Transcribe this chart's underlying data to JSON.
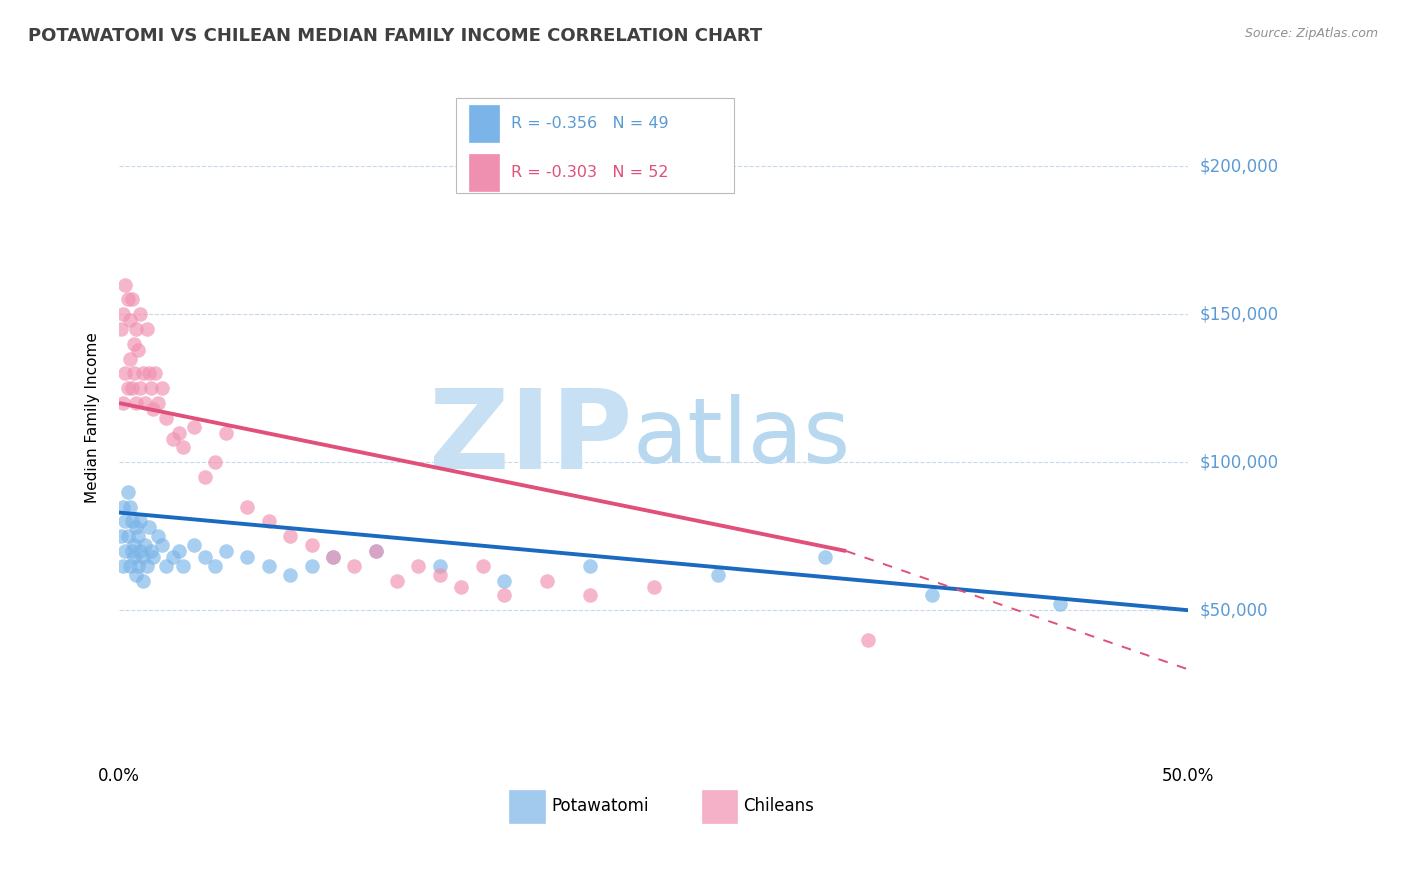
{
  "title": "POTAWATOMI VS CHILEAN MEDIAN FAMILY INCOME CORRELATION CHART",
  "source_text": "Source: ZipAtlas.com",
  "ylabel": "Median Family Income",
  "ytick_labels": [
    "$50,000",
    "$100,000",
    "$150,000",
    "$200,000"
  ],
  "ytick_values": [
    50000,
    100000,
    150000,
    200000
  ],
  "ylim": [
    0,
    230000
  ],
  "xlim": [
    0.0,
    0.5
  ],
  "potawatomi_x": [
    0.001,
    0.002,
    0.002,
    0.003,
    0.003,
    0.004,
    0.004,
    0.005,
    0.005,
    0.006,
    0.006,
    0.007,
    0.007,
    0.008,
    0.008,
    0.009,
    0.009,
    0.01,
    0.01,
    0.011,
    0.011,
    0.012,
    0.013,
    0.014,
    0.015,
    0.016,
    0.018,
    0.02,
    0.022,
    0.025,
    0.028,
    0.03,
    0.035,
    0.04,
    0.045,
    0.05,
    0.06,
    0.07,
    0.08,
    0.09,
    0.1,
    0.12,
    0.15,
    0.18,
    0.22,
    0.28,
    0.33,
    0.38,
    0.44
  ],
  "potawatomi_y": [
    75000,
    85000,
    65000,
    80000,
    70000,
    90000,
    75000,
    85000,
    65000,
    80000,
    70000,
    72000,
    68000,
    78000,
    62000,
    75000,
    65000,
    80000,
    70000,
    68000,
    60000,
    72000,
    65000,
    78000,
    70000,
    68000,
    75000,
    72000,
    65000,
    68000,
    70000,
    65000,
    72000,
    68000,
    65000,
    70000,
    68000,
    65000,
    62000,
    65000,
    68000,
    70000,
    65000,
    60000,
    65000,
    62000,
    68000,
    55000,
    52000
  ],
  "chilean_x": [
    0.001,
    0.002,
    0.002,
    0.003,
    0.003,
    0.004,
    0.004,
    0.005,
    0.005,
    0.006,
    0.006,
    0.007,
    0.007,
    0.008,
    0.008,
    0.009,
    0.01,
    0.01,
    0.011,
    0.012,
    0.013,
    0.014,
    0.015,
    0.016,
    0.017,
    0.018,
    0.02,
    0.022,
    0.025,
    0.028,
    0.03,
    0.035,
    0.04,
    0.045,
    0.05,
    0.06,
    0.07,
    0.08,
    0.09,
    0.1,
    0.11,
    0.12,
    0.13,
    0.14,
    0.15,
    0.16,
    0.17,
    0.18,
    0.2,
    0.22,
    0.25,
    0.35
  ],
  "chilean_y": [
    145000,
    150000,
    120000,
    160000,
    130000,
    155000,
    125000,
    148000,
    135000,
    155000,
    125000,
    140000,
    130000,
    145000,
    120000,
    138000,
    150000,
    125000,
    130000,
    120000,
    145000,
    130000,
    125000,
    118000,
    130000,
    120000,
    125000,
    115000,
    108000,
    110000,
    105000,
    112000,
    95000,
    100000,
    110000,
    85000,
    80000,
    75000,
    72000,
    68000,
    65000,
    70000,
    60000,
    65000,
    62000,
    58000,
    65000,
    55000,
    60000,
    55000,
    58000,
    40000
  ],
  "blue_dot_color": "#7ab4e8",
  "pink_dot_color": "#f090b0",
  "blue_line_color": "#1a6abf",
  "pink_line_color": "#e0507a",
  "tick_color": "#5b9bd5",
  "grid_color": "#c8daea",
  "background_color": "#ffffff",
  "watermark_zip_color": "#c8e0f4",
  "watermark_atlas_color": "#b8d8f0",
  "legend_blue_text_color": "#5b9bd5",
  "legend_pink_text_color": "#e05078",
  "potawatomi_R": "-0.356",
  "potawatomi_N": "49",
  "chilean_R": "-0.303",
  "chilean_N": "52",
  "blue_trend_x0": 0.0,
  "blue_trend_x1": 0.5,
  "blue_trend_y0": 83000,
  "blue_trend_y1": 50000,
  "pink_trend_solid_x0": 0.0,
  "pink_trend_solid_x1": 0.34,
  "pink_trend_y0": 120000,
  "pink_trend_y1": 70000,
  "pink_trend_dashed_x0": 0.34,
  "pink_trend_dashed_x1": 0.5,
  "pink_trend_dashed_y0": 70000,
  "pink_trend_dashed_y1": 30000
}
